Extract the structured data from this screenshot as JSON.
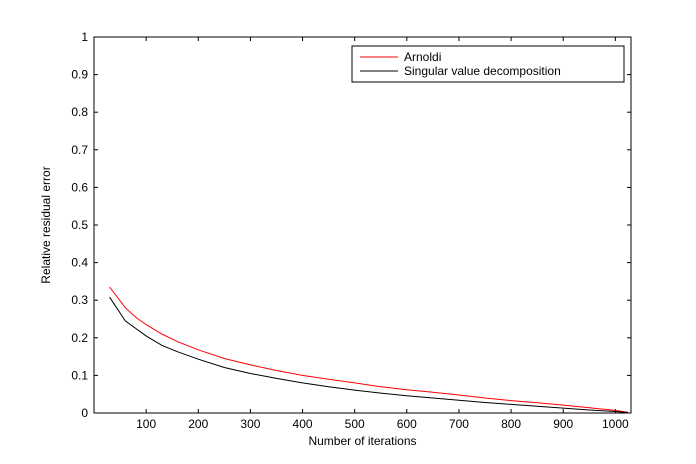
{
  "chart_data": {
    "type": "line",
    "title": "",
    "xlabel": "Number of iterations",
    "ylabel": "Relative residual error",
    "xlim": [
      0,
      1030
    ],
    "ylim": [
      0,
      1
    ],
    "xticks": [
      100,
      200,
      300,
      400,
      500,
      600,
      700,
      800,
      900,
      1000
    ],
    "yticks": [
      0,
      0.1,
      0.2,
      0.3,
      0.4,
      0.5,
      0.6,
      0.7,
      0.8,
      0.9,
      1
    ],
    "ytick_labels": [
      "0",
      "0.1",
      "0.2",
      "0.3",
      "0.4",
      "0.5",
      "0.6",
      "0.7",
      "0.8",
      "0.9",
      "1"
    ],
    "grid": false,
    "legend_position": "top-right",
    "series": [
      {
        "name": "Arnoldi",
        "color": "#ff0000",
        "x": [
          30,
          60,
          80,
          100,
          130,
          160,
          200,
          250,
          300,
          350,
          400,
          450,
          500,
          550,
          600,
          650,
          700,
          750,
          800,
          850,
          900,
          950,
          1000,
          1024
        ],
        "y": [
          0.335,
          0.28,
          0.255,
          0.235,
          0.21,
          0.19,
          0.168,
          0.145,
          0.128,
          0.113,
          0.1,
          0.09,
          0.08,
          0.07,
          0.062,
          0.055,
          0.048,
          0.04,
          0.033,
          0.027,
          0.021,
          0.014,
          0.007,
          0.002
        ]
      },
      {
        "name": "Singular value decomposition",
        "color": "#000000",
        "x": [
          30,
          60,
          80,
          100,
          130,
          160,
          200,
          250,
          300,
          350,
          400,
          450,
          500,
          550,
          600,
          650,
          700,
          750,
          800,
          850,
          900,
          950,
          1000,
          1024
        ],
        "y": [
          0.308,
          0.245,
          0.225,
          0.205,
          0.18,
          0.163,
          0.143,
          0.121,
          0.105,
          0.092,
          0.08,
          0.07,
          0.061,
          0.053,
          0.046,
          0.04,
          0.034,
          0.028,
          0.023,
          0.018,
          0.013,
          0.008,
          0.004,
          0.001
        ]
      }
    ]
  }
}
